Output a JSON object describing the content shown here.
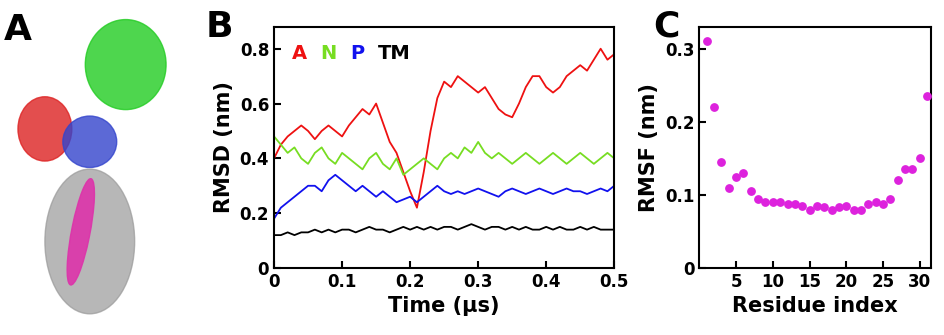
{
  "chart_data": [
    {
      "type": "image",
      "title": "A"
    },
    {
      "type": "line",
      "title": "B",
      "x_label": "Time (μs)",
      "y_label": "RMSD (nm)",
      "x": [
        0,
        0.01,
        0.02,
        0.03,
        0.04,
        0.05,
        0.06,
        0.07,
        0.08,
        0.09,
        0.1,
        0.11,
        0.12,
        0.13,
        0.14,
        0.15,
        0.16,
        0.17,
        0.18,
        0.19,
        0.2,
        0.21,
        0.22,
        0.23,
        0.24,
        0.25,
        0.26,
        0.27,
        0.28,
        0.29,
        0.3,
        0.31,
        0.32,
        0.33,
        0.34,
        0.35,
        0.36,
        0.37,
        0.38,
        0.39,
        0.4,
        0.41,
        0.42,
        0.43,
        0.44,
        0.45,
        0.46,
        0.47,
        0.48,
        0.49,
        0.5
      ],
      "series": [
        {
          "name": "A",
          "color": "#ee1111",
          "values": [
            0.4,
            0.45,
            0.48,
            0.5,
            0.52,
            0.5,
            0.47,
            0.5,
            0.52,
            0.5,
            0.48,
            0.52,
            0.55,
            0.58,
            0.56,
            0.6,
            0.53,
            0.46,
            0.42,
            0.35,
            0.28,
            0.22,
            0.35,
            0.5,
            0.62,
            0.68,
            0.66,
            0.7,
            0.68,
            0.66,
            0.64,
            0.66,
            0.62,
            0.58,
            0.56,
            0.55,
            0.6,
            0.66,
            0.7,
            0.7,
            0.66,
            0.64,
            0.66,
            0.7,
            0.72,
            0.74,
            0.72,
            0.76,
            0.8,
            0.76,
            0.78
          ]
        },
        {
          "name": "N",
          "color": "#77dd22",
          "values": [
            0.48,
            0.45,
            0.42,
            0.44,
            0.4,
            0.38,
            0.42,
            0.44,
            0.4,
            0.38,
            0.42,
            0.4,
            0.38,
            0.36,
            0.4,
            0.42,
            0.38,
            0.36,
            0.4,
            0.34,
            0.36,
            0.38,
            0.4,
            0.38,
            0.36,
            0.4,
            0.42,
            0.4,
            0.44,
            0.42,
            0.46,
            0.42,
            0.4,
            0.42,
            0.4,
            0.38,
            0.4,
            0.42,
            0.4,
            0.38,
            0.4,
            0.42,
            0.4,
            0.38,
            0.4,
            0.42,
            0.4,
            0.38,
            0.4,
            0.42,
            0.4
          ]
        },
        {
          "name": "P",
          "color": "#1111ee",
          "values": [
            0.18,
            0.22,
            0.24,
            0.26,
            0.28,
            0.3,
            0.3,
            0.28,
            0.32,
            0.34,
            0.32,
            0.3,
            0.28,
            0.3,
            0.28,
            0.26,
            0.28,
            0.26,
            0.24,
            0.25,
            0.26,
            0.24,
            0.26,
            0.28,
            0.3,
            0.28,
            0.27,
            0.28,
            0.27,
            0.28,
            0.29,
            0.28,
            0.27,
            0.26,
            0.28,
            0.29,
            0.28,
            0.27,
            0.28,
            0.29,
            0.28,
            0.27,
            0.28,
            0.29,
            0.28,
            0.28,
            0.27,
            0.28,
            0.29,
            0.28,
            0.3
          ]
        },
        {
          "name": "TM",
          "color": "#000000",
          "values": [
            0.12,
            0.12,
            0.13,
            0.12,
            0.13,
            0.13,
            0.14,
            0.13,
            0.14,
            0.13,
            0.14,
            0.14,
            0.13,
            0.14,
            0.15,
            0.14,
            0.14,
            0.13,
            0.14,
            0.15,
            0.14,
            0.15,
            0.14,
            0.15,
            0.14,
            0.15,
            0.15,
            0.14,
            0.15,
            0.16,
            0.15,
            0.14,
            0.15,
            0.15,
            0.14,
            0.15,
            0.14,
            0.15,
            0.14,
            0.14,
            0.15,
            0.14,
            0.15,
            0.14,
            0.14,
            0.15,
            0.14,
            0.15,
            0.14,
            0.14,
            0.14
          ]
        }
      ],
      "xlim": [
        0,
        0.5
      ],
      "xticks": [
        0,
        0.1,
        0.2,
        0.3,
        0.4,
        0.5
      ],
      "ylim": [
        0,
        0.88
      ],
      "yticks": [
        0,
        0.2,
        0.4,
        0.6,
        0.8
      ],
      "legend": "upper left"
    },
    {
      "type": "scatter",
      "title": "C",
      "x_label": "Residue index",
      "y_label": "RMSF (nm)",
      "x": [
        1,
        2,
        3,
        4,
        5,
        6,
        7,
        8,
        9,
        10,
        11,
        12,
        13,
        14,
        15,
        16,
        17,
        18,
        19,
        20,
        21,
        22,
        23,
        24,
        25,
        26,
        27,
        28,
        29,
        30,
        31
      ],
      "values": [
        0.31,
        0.22,
        0.145,
        0.11,
        0.125,
        0.13,
        0.105,
        0.095,
        0.09,
        0.09,
        0.09,
        0.088,
        0.088,
        0.085,
        0.08,
        0.085,
        0.083,
        0.08,
        0.083,
        0.085,
        0.08,
        0.08,
        0.087,
        0.09,
        0.087,
        0.095,
        0.12,
        0.135,
        0.135,
        0.15,
        0.235
      ],
      "color": "#dd22dd",
      "marker": "o",
      "xlim": [
        0,
        31.5
      ],
      "xticks": [
        5,
        10,
        15,
        20,
        25,
        30
      ],
      "ylim": [
        0,
        0.33
      ],
      "yticks": [
        0,
        0.1,
        0.2,
        0.3
      ]
    }
  ]
}
